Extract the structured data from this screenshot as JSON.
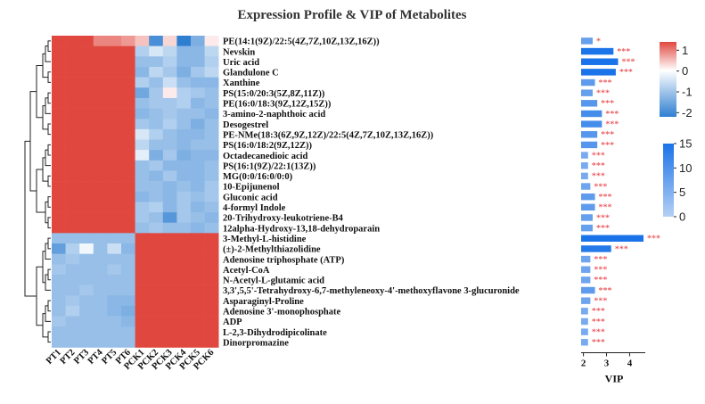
{
  "title": "Expression Profile & VIP of Metabolites",
  "colors": {
    "high": "#e0483f",
    "mid": "#ffffff",
    "low": "#2f7fd1",
    "bar_low": "#a9c8f2",
    "bar_high": "#1a73e8",
    "sig": "#e8343a"
  },
  "chart_data": [
    {
      "type": "heatmap",
      "samples": [
        "PT1",
        "PT2",
        "PT3",
        "PT4",
        "PT5",
        "PT6",
        "PCK1",
        "PCK2",
        "PCK3",
        "PCK4",
        "PCK5",
        "PCK6"
      ],
      "rows": [
        "PE(14:1(9Z)/22:5(4Z,7Z,10Z,13Z,16Z))",
        "Nevskin",
        "Uric acid",
        "Glandulone C",
        "Xanthine",
        "PS(15:0/20:3(5Z,8Z,11Z))",
        "PE(16:0/18:3(9Z,12Z,15Z))",
        "3-amino-2-naphthoic acid",
        "Desogestrel",
        "PE-NMe(18:3(6Z,9Z,12Z)/22:5(4Z,7Z,10Z,13Z,16Z))",
        "PS(16:0/18:2(9Z,12Z))",
        "Octadecanedioic acid",
        "PS(16:1(9Z)/22:1(13Z))",
        "MG(0:0/16:0/0:0)",
        "10-Epijunenol",
        "Gluconic acid",
        "4-formyl Indole",
        "20-Trihydroxy-leukotriene-B4",
        "12alpha-Hydroxy-13,18-dehydroparain",
        "3-Methyl-L-histidine",
        "(±)-2-Methylthiazolidine",
        "Adenosine triphosphate (ATP)",
        "Acetyl-CoA",
        "N-Acetyl-L-glutamic acid",
        "3,3',5,5'-Tetrahydroxy-6,7-methyleneoxy-4'-methoxyflavone 3-glucuronide",
        "Asparaginyl-Proline",
        "Adenosine 3'-monophosphate",
        "ADP",
        "L-2,3-Dihydrodipicolinate",
        "Dinorpromazine"
      ],
      "values": [
        [
          0.9,
          0.9,
          1.0,
          0.6,
          0.6,
          0.5,
          0.3,
          -1.4,
          0.2,
          -2.2,
          -1.0,
          0.1
        ],
        [
          1.2,
          1.2,
          1.2,
          1.1,
          1.0,
          1.1,
          -0.6,
          -0.3,
          -0.5,
          -0.9,
          -0.9,
          -0.5
        ],
        [
          1.2,
          1.2,
          1.2,
          1.1,
          1.1,
          1.3,
          -0.8,
          -0.8,
          -0.6,
          -0.9,
          -0.9,
          -0.6
        ],
        [
          1.1,
          1.2,
          1.1,
          1.2,
          1.2,
          1.3,
          -0.9,
          -0.5,
          -0.7,
          -1.0,
          -0.7,
          -0.5
        ],
        [
          1.1,
          1.1,
          1.2,
          1.0,
          1.0,
          1.1,
          -0.6,
          -0.8,
          -0.4,
          -0.8,
          -0.9,
          -0.9
        ],
        [
          1.1,
          1.0,
          1.1,
          1.0,
          1.1,
          1.2,
          -1.1,
          -0.7,
          0.1,
          -0.6,
          -0.7,
          -0.8
        ],
        [
          1.2,
          1.2,
          1.1,
          1.1,
          1.1,
          1.2,
          -0.8,
          -0.7,
          -0.7,
          -0.6,
          -0.9,
          -0.8
        ],
        [
          1.2,
          1.1,
          1.1,
          1.0,
          1.2,
          1.2,
          -0.9,
          -0.8,
          -0.7,
          -0.8,
          -0.8,
          -0.9
        ],
        [
          1.1,
          1.1,
          1.0,
          1.1,
          1.1,
          1.2,
          -0.7,
          -0.8,
          -0.6,
          -0.8,
          -1.0,
          -0.8
        ],
        [
          1.2,
          1.1,
          1.3,
          1.1,
          1.1,
          1.1,
          -0.3,
          -0.6,
          -0.8,
          -0.9,
          -0.9,
          -0.8
        ],
        [
          1.1,
          1.2,
          1.2,
          1.2,
          1.1,
          1.1,
          -0.5,
          -0.8,
          -0.8,
          -0.9,
          -0.8,
          -0.8
        ],
        [
          1.1,
          1.1,
          1.1,
          1.1,
          1.2,
          1.2,
          -0.2,
          -1.0,
          -0.7,
          -1.0,
          -0.9,
          -0.9
        ],
        [
          1.0,
          1.2,
          1.2,
          1.0,
          1.1,
          1.2,
          -0.8,
          -0.7,
          -0.9,
          -0.9,
          -0.9,
          -0.8
        ],
        [
          1.0,
          1.4,
          1.0,
          1.0,
          1.1,
          1.1,
          -0.8,
          -0.9,
          -0.7,
          -0.9,
          -0.9,
          -0.8
        ],
        [
          1.1,
          1.1,
          1.1,
          1.1,
          1.1,
          1.2,
          -0.8,
          -0.8,
          -0.9,
          -0.8,
          -0.9,
          -0.7
        ],
        [
          1.2,
          1.2,
          1.1,
          1.1,
          1.1,
          1.1,
          -0.9,
          -0.8,
          -0.9,
          -0.7,
          -0.8,
          -0.7
        ],
        [
          1.1,
          1.1,
          1.1,
          1.1,
          1.1,
          1.2,
          -0.7,
          -0.6,
          -0.9,
          -0.7,
          -0.9,
          -0.8
        ],
        [
          1.2,
          1.1,
          1.1,
          1.2,
          1.1,
          1.1,
          -0.7,
          -0.8,
          -1.3,
          -0.7,
          -0.8,
          -0.9
        ],
        [
          1.1,
          1.2,
          1.0,
          1.1,
          1.1,
          1.1,
          -0.8,
          -0.7,
          -0.8,
          -0.8,
          -0.9,
          -0.8
        ],
        [
          -0.8,
          -0.8,
          -0.8,
          -0.8,
          -0.8,
          -0.8,
          1.1,
          1.2,
          1.1,
          1.2,
          1.2,
          1.2
        ],
        [
          -1.2,
          -0.6,
          -0.1,
          -0.8,
          -0.4,
          -0.9,
          1.1,
          1.1,
          1.1,
          1.1,
          1.1,
          1.1
        ],
        [
          -0.8,
          -0.7,
          -0.8,
          -0.8,
          -0.8,
          -0.8,
          1.1,
          1.2,
          1.3,
          1.2,
          1.2,
          1.2
        ],
        [
          -0.7,
          -0.8,
          -0.8,
          -0.8,
          -0.7,
          -0.8,
          1.1,
          1.2,
          1.3,
          1.2,
          1.2,
          1.2
        ],
        [
          -0.8,
          -0.8,
          -0.8,
          -0.8,
          -0.8,
          -0.8,
          1.1,
          1.2,
          1.2,
          1.3,
          1.2,
          1.2
        ],
        [
          -0.8,
          -0.8,
          -0.7,
          -0.8,
          -0.8,
          -0.8,
          1.1,
          1.3,
          1.3,
          1.2,
          1.2,
          1.2
        ],
        [
          -0.8,
          -0.7,
          -0.8,
          -0.8,
          -0.9,
          -0.9,
          1.2,
          1.2,
          1.2,
          1.2,
          1.2,
          1.3
        ],
        [
          -0.8,
          -0.6,
          -0.8,
          -0.8,
          -0.9,
          -1.0,
          1.2,
          1.2,
          1.1,
          1.2,
          1.2,
          1.3
        ],
        [
          -0.7,
          -0.8,
          -0.8,
          -0.8,
          -0.8,
          -0.9,
          1.2,
          1.2,
          1.1,
          1.2,
          1.2,
          1.3
        ],
        [
          -0.8,
          -0.8,
          -0.8,
          -0.8,
          -0.8,
          -0.8,
          1.1,
          1.2,
          1.2,
          1.2,
          1.2,
          1.2
        ],
        [
          -0.8,
          -0.8,
          -0.8,
          -0.8,
          -0.8,
          -0.8,
          1.1,
          1.2,
          1.1,
          1.2,
          1.2,
          1.2
        ]
      ],
      "color_scale": {
        "ticks": [
          1,
          0,
          -1,
          -2
        ],
        "range": [
          -2.2,
          1.4
        ]
      }
    },
    {
      "type": "bar",
      "orientation": "horizontal",
      "categories_ref": "rows",
      "values": [
        2.4,
        3.3,
        3.5,
        3.4,
        2.5,
        2.4,
        2.6,
        2.8,
        2.8,
        2.6,
        2.6,
        2.2,
        2.2,
        2.2,
        2.3,
        2.5,
        2.5,
        2.4,
        2.4,
        4.6,
        3.2,
        2.3,
        2.3,
        2.3,
        2.5,
        2.3,
        2.2,
        2.2,
        2.2,
        2.2
      ],
      "significance": [
        "*",
        "***",
        "***",
        "***",
        "***",
        "***",
        "***",
        "***",
        "***",
        "***",
        "***",
        "***",
        "***",
        "***",
        "***",
        "***",
        "***",
        "***",
        "***",
        "***",
        "***",
        "***",
        "***",
        "***",
        "***",
        "***",
        "***",
        "***",
        "***",
        "***"
      ],
      "xlabel": "VIP",
      "xticks": [
        2,
        3,
        4
      ],
      "xlim": [
        1.9,
        4.7
      ],
      "color_scale": {
        "ticks": [
          15,
          10,
          5,
          0
        ]
      }
    }
  ]
}
